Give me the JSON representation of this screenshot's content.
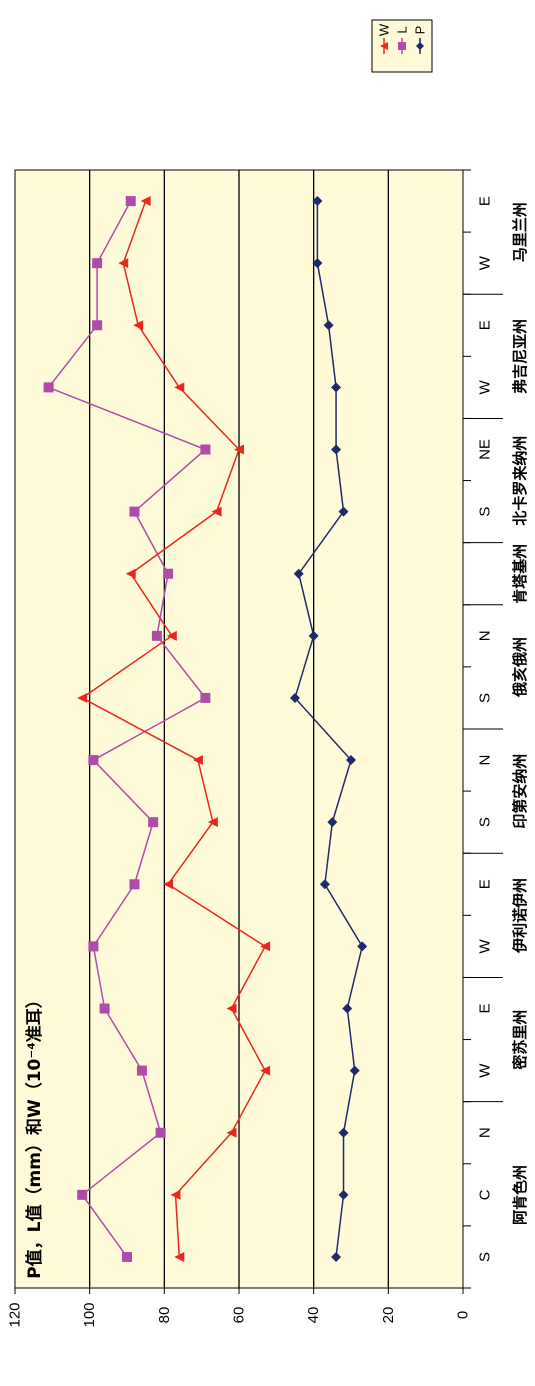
{
  "chart_data": {
    "type": "line",
    "ylabel": "P值，L值（mm）和W（10⁻⁴准耳）",
    "ylim": [
      0,
      120
    ],
    "yticks": [
      0,
      20,
      40,
      60,
      80,
      100,
      120
    ],
    "grid_lines": [
      20,
      40,
      60,
      80,
      100
    ],
    "plot_background": "#FFFBD9",
    "legend_position": "top-right",
    "x": [
      "S",
      "C",
      "N",
      "W",
      "E",
      "W",
      "E",
      "S",
      "N",
      "S",
      "N",
      "",
      "S",
      "NE",
      "W",
      "E",
      "W",
      "E"
    ],
    "groups": [
      {
        "label": "阿肯色州",
        "start": 0,
        "end": 2
      },
      {
        "label": "密苏里州",
        "start": 3,
        "end": 4
      },
      {
        "label": "伊利诺伊州",
        "start": 5,
        "end": 6
      },
      {
        "label": "印第安纳州",
        "start": 7,
        "end": 8
      },
      {
        "label": "俄亥俄州",
        "start": 9,
        "end": 10
      },
      {
        "label": "肯塔基州",
        "start": 11,
        "end": 11
      },
      {
        "label": "北卡罗来纳州",
        "start": 12,
        "end": 13
      },
      {
        "label": "弗吉尼亚州",
        "start": 14,
        "end": 15
      },
      {
        "label": "马里兰州",
        "start": 16,
        "end": 17
      }
    ],
    "series": [
      {
        "name": "P",
        "color": "#1F2A6B",
        "marker": "diamond",
        "values": [
          34,
          32,
          32,
          29,
          31,
          27,
          37,
          35,
          30,
          45,
          40,
          44,
          32,
          34,
          34,
          36,
          39,
          39
        ]
      },
      {
        "name": "L",
        "color": "#B04CA8",
        "marker": "square",
        "values": [
          90,
          102,
          81,
          86,
          96,
          99,
          88,
          83,
          99,
          69,
          82,
          79,
          88,
          69,
          111,
          98,
          98,
          89
        ]
      },
      {
        "name": "W",
        "color": "#E8281E",
        "marker": "triangle",
        "values": [
          76,
          77,
          62,
          53,
          62,
          53,
          79,
          67,
          71,
          102,
          78,
          89,
          66,
          60,
          76,
          87,
          91,
          85
        ]
      }
    ]
  }
}
